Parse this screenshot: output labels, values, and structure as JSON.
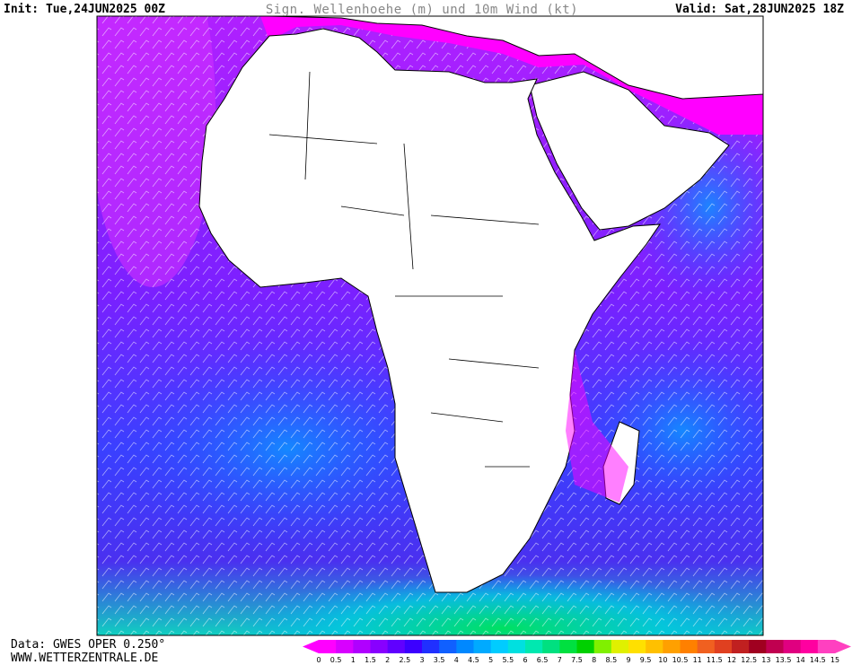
{
  "header": {
    "init": "Init: Tue,24JUN2025 00Z",
    "title": "Sign. Wellenhoehe (m) und 10m Wind (kt)",
    "valid": "Valid: Sat,28JUN2025 18Z"
  },
  "footer": {
    "data": "Data: GWES OPER 0.250°",
    "site": "WWW.WETTERZENTRALE.DE"
  },
  "legend": {
    "labels": [
      0,
      0.5,
      1,
      1.5,
      2,
      2.5,
      3,
      3.5,
      4,
      4.5,
      5,
      5.5,
      6,
      6.5,
      7,
      7.5,
      8,
      8.5,
      9,
      9.5,
      10,
      10.5,
      11,
      11.5,
      12,
      12.5,
      13,
      13.5,
      14,
      14.5,
      15
    ],
    "colors": [
      "#ff00ff",
      "#d800ff",
      "#b000ff",
      "#8800ff",
      "#6000ff",
      "#3c00ff",
      "#2030ff",
      "#1060ff",
      "#0088ff",
      "#00aaff",
      "#00ccff",
      "#00e0e0",
      "#00e8b0",
      "#00e080",
      "#00e040",
      "#00d000",
      "#80f000",
      "#e0f000",
      "#ffe000",
      "#ffc000",
      "#ffa000",
      "#ff8000",
      "#f06020",
      "#e04020",
      "#c02020",
      "#a00020",
      "#c00050",
      "#e00080",
      "#ff00a0",
      "#ff40c0"
    ]
  }
}
